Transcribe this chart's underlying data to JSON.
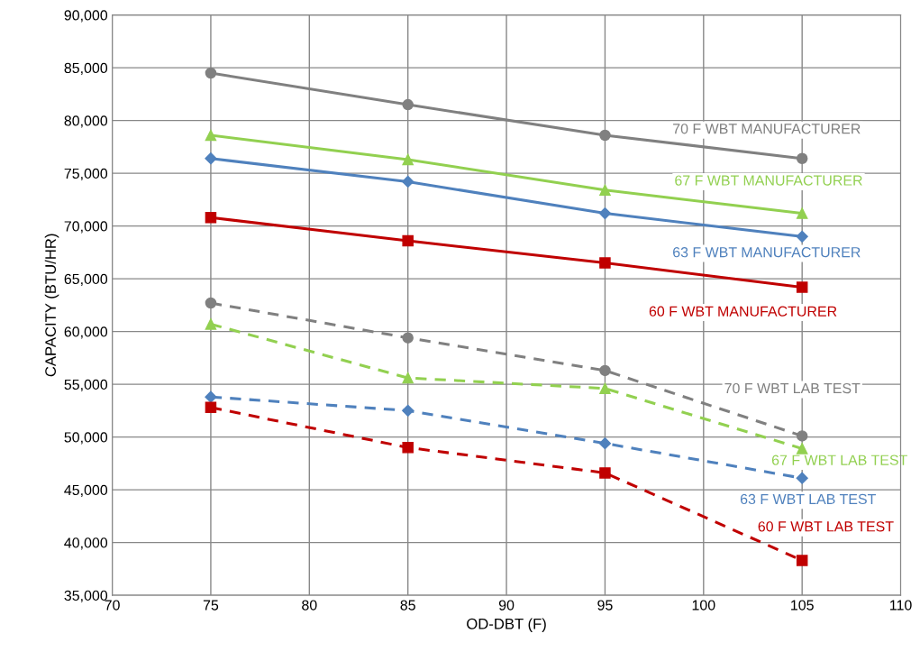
{
  "chart_data": {
    "type": "line",
    "xlabel": "OD-DBT (F)",
    "ylabel": "CAPACITY (BTU/HR)",
    "x": [
      75,
      85,
      95,
      105
    ],
    "xlim": [
      70,
      110
    ],
    "xticks": [
      70,
      75,
      80,
      85,
      90,
      95,
      100,
      105,
      110
    ],
    "ylim": [
      35000,
      90000
    ],
    "yticks": [
      {
        "value": 35000,
        "label": "35,000"
      },
      {
        "value": 40000,
        "label": "40,000"
      },
      {
        "value": 45000,
        "label": "45,000"
      },
      {
        "value": 50000,
        "label": "50,000"
      },
      {
        "value": 55000,
        "label": "55,000"
      },
      {
        "value": 60000,
        "label": "60,000"
      },
      {
        "value": 65000,
        "label": "65,000"
      },
      {
        "value": 70000,
        "label": "70,000"
      },
      {
        "value": 75000,
        "label": "75,000"
      },
      {
        "value": 80000,
        "label": "80,000"
      },
      {
        "value": 85000,
        "label": "85,000"
      },
      {
        "value": 90000,
        "label": "90,000"
      }
    ],
    "grid": true,
    "legend": false,
    "series": [
      {
        "name": "70 F WBT MANUFACTURER",
        "color": "#808080",
        "marker": "circle",
        "line_style": "solid",
        "values": [
          84500,
          81500,
          78600,
          76400
        ]
      },
      {
        "name": "67 F WBT MANUFACTURER",
        "color": "#92d050",
        "marker": "triangle",
        "line_style": "solid",
        "values": [
          78600,
          76300,
          73400,
          71200
        ]
      },
      {
        "name": "63 F WBT MANUFACTURER",
        "color": "#4f81bd",
        "marker": "diamond",
        "line_style": "solid",
        "values": [
          76400,
          74200,
          71200,
          69000
        ]
      },
      {
        "name": "60 F WBT MANUFACTURER",
        "color": "#c00000",
        "marker": "square",
        "line_style": "solid",
        "values": [
          70800,
          68600,
          66500,
          64200
        ]
      },
      {
        "name": "70 F WBT LAB TEST",
        "color": "#808080",
        "marker": "circle",
        "line_style": "dashed",
        "values": [
          62700,
          59400,
          56300,
          50100
        ]
      },
      {
        "name": "67 F WBT LAB TEST",
        "color": "#92d050",
        "marker": "triangle",
        "line_style": "dashed",
        "values": [
          60700,
          55600,
          54600,
          48900
        ]
      },
      {
        "name": "63 F WBT LAB TEST",
        "color": "#4f81bd",
        "marker": "diamond",
        "line_style": "dashed",
        "values": [
          53800,
          52500,
          49400,
          46100
        ]
      },
      {
        "name": "60 F WBT LAB TEST",
        "color": "#c00000",
        "marker": "square",
        "line_style": "dashed",
        "values": [
          52800,
          49000,
          46600,
          38300
        ]
      }
    ]
  }
}
